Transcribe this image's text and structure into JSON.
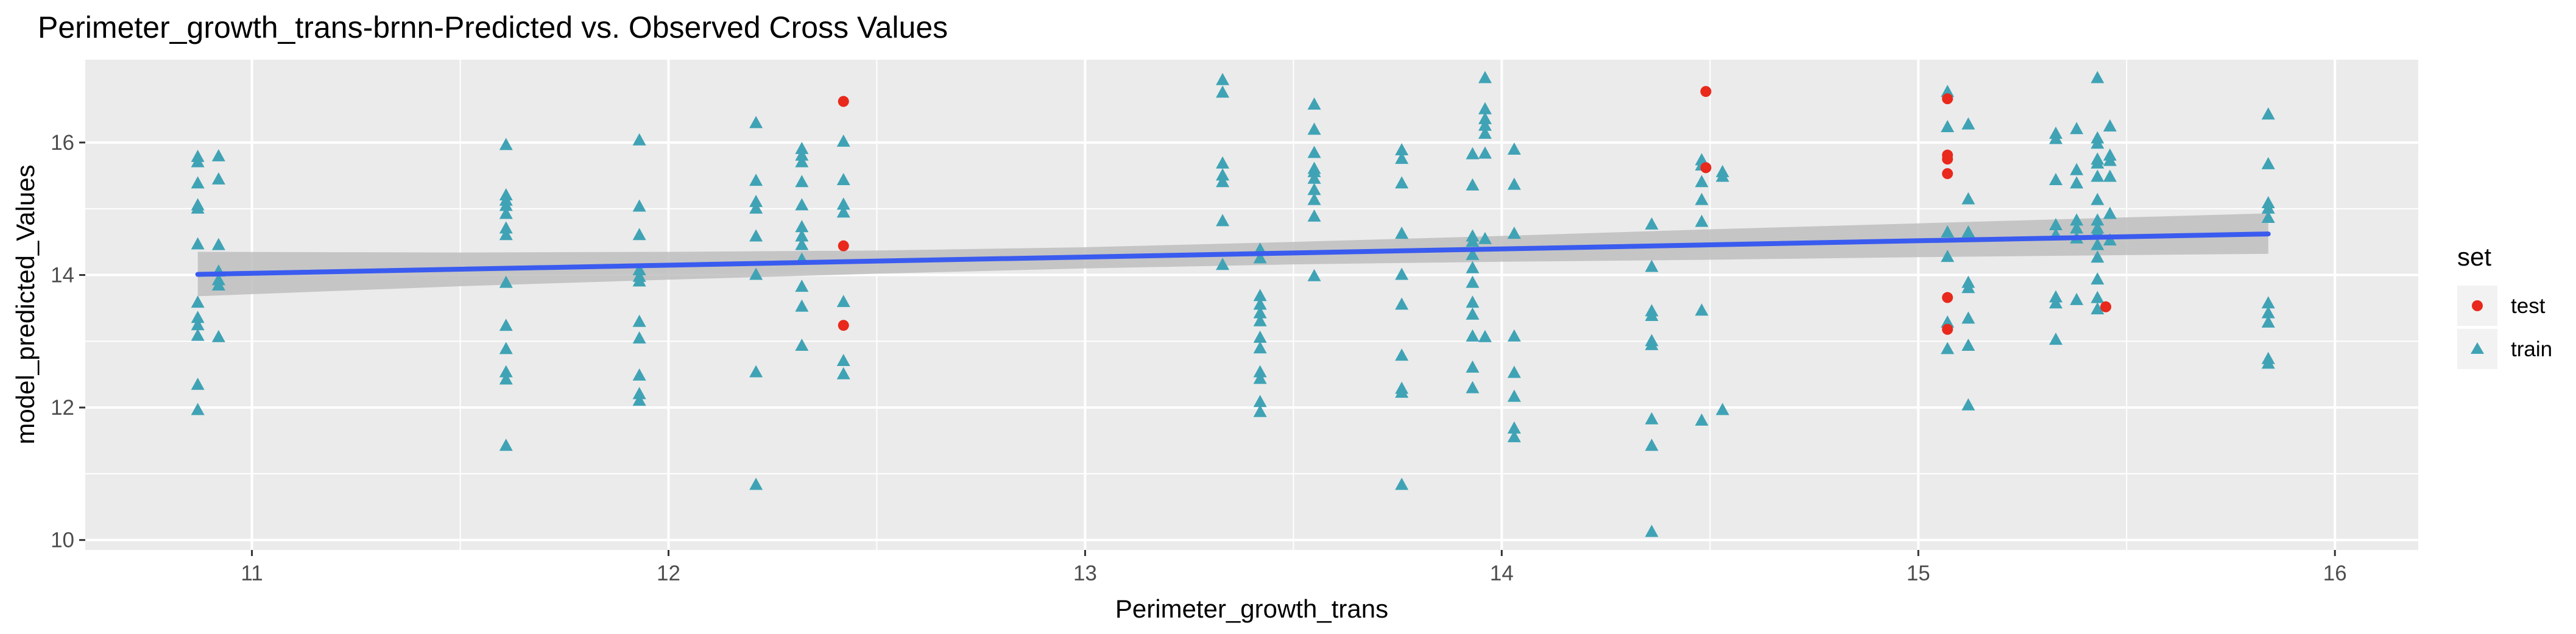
{
  "chart_data": {
    "type": "scatter",
    "title": "Perimeter_growth_trans-brnn-Predicted vs. Observed Cross Values",
    "xlabel": "Perimeter_growth_trans",
    "ylabel": "model_predicted_Values",
    "xlim": [
      10.6,
      16.2
    ],
    "ylim": [
      9.85,
      17.25
    ],
    "x_ticks": [
      11,
      12,
      13,
      14,
      15,
      16
    ],
    "y_ticks": [
      10,
      12,
      14,
      16
    ],
    "grid": true,
    "legend": {
      "title": "set",
      "position": "right",
      "entries": [
        {
          "label": "test",
          "shape": "circle",
          "color": "#F8766D"
        },
        {
          "label": "train",
          "shape": "triangle",
          "color": "#00BFC4"
        }
      ]
    },
    "colors": {
      "panel": "#EBEBEB",
      "grid": "#FFFFFF",
      "test": "#F8766D",
      "test_point": "#E8291C",
      "train_point": "#3FA3B5",
      "fit_line": "#3A5BEF",
      "ribbon": "#BEBEBE"
    },
    "fit_line": {
      "x": [
        10.87,
        15.84
      ],
      "y": [
        14.01,
        14.62
      ]
    },
    "confidence_band": {
      "x": [
        10.87,
        11.5,
        12.0,
        12.5,
        13.0,
        13.5,
        14.0,
        14.5,
        15.0,
        15.5,
        15.84
      ],
      "lower": [
        13.68,
        13.83,
        13.93,
        14.02,
        14.1,
        14.16,
        14.2,
        14.23,
        14.27,
        14.3,
        14.32
      ],
      "upper": [
        14.35,
        14.34,
        14.35,
        14.37,
        14.42,
        14.5,
        14.59,
        14.69,
        14.78,
        14.87,
        14.93
      ]
    },
    "series": [
      {
        "name": "test",
        "points": [
          [
            12.42,
            16.62
          ],
          [
            12.42,
            14.44
          ],
          [
            12.42,
            13.24
          ],
          [
            14.49,
            16.77
          ],
          [
            14.49,
            15.62
          ],
          [
            15.07,
            16.66
          ],
          [
            15.07,
            15.81
          ],
          [
            15.07,
            15.75
          ],
          [
            15.07,
            15.53
          ],
          [
            15.07,
            13.66
          ],
          [
            15.07,
            13.18
          ],
          [
            15.45,
            13.52
          ]
        ]
      },
      {
        "name": "train",
        "points": [
          [
            10.87,
            15.78
          ],
          [
            10.87,
            15.7
          ],
          [
            10.87,
            15.38
          ],
          [
            10.87,
            15.05
          ],
          [
            10.87,
            15.0
          ],
          [
            10.87,
            14.46
          ],
          [
            10.87,
            13.58
          ],
          [
            10.87,
            13.35
          ],
          [
            10.87,
            13.24
          ],
          [
            10.87,
            13.08
          ],
          [
            10.87,
            12.34
          ],
          [
            10.87,
            11.96
          ],
          [
            10.92,
            15.79
          ],
          [
            10.92,
            15.44
          ],
          [
            10.92,
            14.45
          ],
          [
            10.92,
            14.05
          ],
          [
            10.92,
            13.92
          ],
          [
            10.92,
            13.84
          ],
          [
            10.92,
            13.06
          ],
          [
            11.61,
            15.96
          ],
          [
            11.61,
            15.2
          ],
          [
            11.61,
            15.12
          ],
          [
            11.61,
            15.04
          ],
          [
            11.61,
            14.92
          ],
          [
            11.61,
            14.7
          ],
          [
            11.61,
            14.6
          ],
          [
            11.61,
            13.88
          ],
          [
            11.61,
            13.23
          ],
          [
            11.61,
            12.88
          ],
          [
            11.61,
            12.53
          ],
          [
            11.61,
            12.42
          ],
          [
            11.61,
            11.42
          ],
          [
            11.93,
            16.03
          ],
          [
            11.93,
            15.03
          ],
          [
            11.93,
            14.6
          ],
          [
            11.93,
            14.07
          ],
          [
            11.93,
            13.97
          ],
          [
            11.93,
            13.9
          ],
          [
            11.93,
            13.29
          ],
          [
            11.93,
            13.04
          ],
          [
            11.93,
            12.48
          ],
          [
            11.93,
            12.2
          ],
          [
            11.93,
            12.1
          ],
          [
            12.21,
            16.29
          ],
          [
            12.21,
            15.42
          ],
          [
            12.21,
            15.1
          ],
          [
            12.21,
            15.0
          ],
          [
            12.21,
            14.58
          ],
          [
            12.21,
            14.0
          ],
          [
            12.21,
            12.53
          ],
          [
            12.21,
            10.83
          ],
          [
            12.32,
            15.9
          ],
          [
            12.32,
            15.8
          ],
          [
            12.32,
            15.7
          ],
          [
            12.32,
            15.4
          ],
          [
            12.32,
            15.05
          ],
          [
            12.32,
            14.72
          ],
          [
            12.32,
            14.58
          ],
          [
            12.32,
            14.45
          ],
          [
            12.32,
            14.23
          ],
          [
            12.32,
            13.82
          ],
          [
            12.32,
            13.52
          ],
          [
            12.32,
            12.93
          ],
          [
            12.42,
            16.01
          ],
          [
            12.42,
            15.43
          ],
          [
            12.42,
            15.06
          ],
          [
            12.42,
            14.94
          ],
          [
            12.42,
            13.59
          ],
          [
            12.42,
            12.7
          ],
          [
            12.42,
            12.5
          ],
          [
            13.33,
            16.94
          ],
          [
            13.33,
            16.75
          ],
          [
            13.33,
            15.68
          ],
          [
            13.33,
            15.5
          ],
          [
            13.33,
            15.4
          ],
          [
            13.33,
            14.81
          ],
          [
            13.33,
            14.15
          ],
          [
            13.42,
            14.38
          ],
          [
            13.42,
            14.25
          ],
          [
            13.42,
            13.68
          ],
          [
            13.42,
            13.55
          ],
          [
            13.42,
            13.42
          ],
          [
            13.42,
            13.3
          ],
          [
            13.42,
            13.05
          ],
          [
            13.42,
            12.89
          ],
          [
            13.42,
            12.53
          ],
          [
            13.42,
            12.43
          ],
          [
            13.42,
            12.08
          ],
          [
            13.42,
            11.93
          ],
          [
            13.55,
            16.57
          ],
          [
            13.55,
            16.19
          ],
          [
            13.55,
            15.84
          ],
          [
            13.55,
            15.6
          ],
          [
            13.55,
            15.55
          ],
          [
            13.55,
            15.45
          ],
          [
            13.55,
            15.28
          ],
          [
            13.55,
            15.13
          ],
          [
            13.55,
            14.88
          ],
          [
            13.55,
            13.98
          ],
          [
            13.76,
            15.88
          ],
          [
            13.76,
            15.75
          ],
          [
            13.76,
            15.38
          ],
          [
            13.76,
            14.62
          ],
          [
            13.76,
            14.0
          ],
          [
            13.76,
            13.55
          ],
          [
            13.76,
            12.78
          ],
          [
            13.76,
            12.28
          ],
          [
            13.76,
            12.22
          ],
          [
            13.76,
            10.83
          ],
          [
            13.93,
            15.82
          ],
          [
            13.93,
            15.35
          ],
          [
            13.93,
            14.58
          ],
          [
            13.93,
            14.5
          ],
          [
            13.93,
            14.3
          ],
          [
            13.93,
            14.1
          ],
          [
            13.93,
            13.88
          ],
          [
            13.93,
            13.58
          ],
          [
            13.93,
            13.4
          ],
          [
            13.93,
            13.07
          ],
          [
            13.93,
            12.6
          ],
          [
            13.93,
            12.29
          ],
          [
            13.96,
            16.97
          ],
          [
            13.96,
            16.5
          ],
          [
            13.96,
            16.35
          ],
          [
            13.96,
            16.25
          ],
          [
            13.96,
            16.13
          ],
          [
            13.96,
            15.83
          ],
          [
            13.96,
            14.54
          ],
          [
            13.96,
            13.06
          ],
          [
            14.03,
            15.89
          ],
          [
            14.03,
            15.36
          ],
          [
            14.03,
            14.62
          ],
          [
            14.03,
            13.07
          ],
          [
            14.03,
            12.52
          ],
          [
            14.03,
            12.16
          ],
          [
            14.03,
            11.68
          ],
          [
            14.03,
            11.55
          ],
          [
            14.36,
            14.76
          ],
          [
            14.36,
            14.12
          ],
          [
            14.36,
            13.45
          ],
          [
            14.36,
            13.38
          ],
          [
            14.36,
            13.0
          ],
          [
            14.36,
            12.94
          ],
          [
            14.36,
            11.82
          ],
          [
            14.36,
            11.42
          ],
          [
            14.36,
            10.12
          ],
          [
            14.48,
            15.73
          ],
          [
            14.48,
            15.65
          ],
          [
            14.48,
            15.4
          ],
          [
            14.48,
            15.13
          ],
          [
            14.48,
            14.8
          ],
          [
            14.48,
            13.46
          ],
          [
            14.48,
            11.8
          ],
          [
            14.53,
            15.55
          ],
          [
            14.53,
            15.48
          ],
          [
            14.53,
            11.96
          ],
          [
            15.07,
            16.76
          ],
          [
            15.07,
            16.23
          ],
          [
            15.07,
            14.64
          ],
          [
            15.07,
            14.27
          ],
          [
            15.07,
            13.28
          ],
          [
            15.07,
            12.88
          ],
          [
            15.12,
            16.27
          ],
          [
            15.12,
            15.14
          ],
          [
            15.12,
            14.64
          ],
          [
            15.12,
            13.88
          ],
          [
            15.12,
            13.8
          ],
          [
            15.12,
            13.34
          ],
          [
            15.12,
            12.93
          ],
          [
            15.12,
            12.03
          ],
          [
            15.33,
            16.13
          ],
          [
            15.33,
            16.05
          ],
          [
            15.33,
            15.43
          ],
          [
            15.33,
            14.75
          ],
          [
            15.33,
            14.6
          ],
          [
            15.33,
            13.66
          ],
          [
            15.33,
            13.57
          ],
          [
            15.33,
            13.02
          ],
          [
            15.38,
            16.2
          ],
          [
            15.38,
            15.58
          ],
          [
            15.38,
            15.38
          ],
          [
            15.38,
            14.82
          ],
          [
            15.38,
            14.7
          ],
          [
            15.38,
            14.55
          ],
          [
            15.38,
            13.62
          ],
          [
            15.43,
            16.97
          ],
          [
            15.43,
            16.06
          ],
          [
            15.43,
            15.98
          ],
          [
            15.43,
            15.74
          ],
          [
            15.43,
            15.68
          ],
          [
            15.43,
            15.48
          ],
          [
            15.43,
            15.13
          ],
          [
            15.43,
            14.82
          ],
          [
            15.43,
            14.7
          ],
          [
            15.43,
            14.64
          ],
          [
            15.43,
            14.45
          ],
          [
            15.43,
            14.26
          ],
          [
            15.43,
            13.93
          ],
          [
            15.43,
            13.65
          ],
          [
            15.43,
            13.48
          ],
          [
            15.46,
            16.24
          ],
          [
            15.46,
            15.8
          ],
          [
            15.46,
            15.72
          ],
          [
            15.46,
            15.48
          ],
          [
            15.46,
            14.92
          ],
          [
            15.46,
            14.52
          ],
          [
            15.84,
            16.42
          ],
          [
            15.84,
            15.67
          ],
          [
            15.84,
            15.08
          ],
          [
            15.84,
            15.0
          ],
          [
            15.84,
            14.86
          ],
          [
            15.84,
            13.57
          ],
          [
            15.84,
            13.42
          ],
          [
            15.84,
            13.28
          ],
          [
            15.84,
            12.73
          ],
          [
            15.84,
            12.66
          ]
        ]
      }
    ]
  }
}
